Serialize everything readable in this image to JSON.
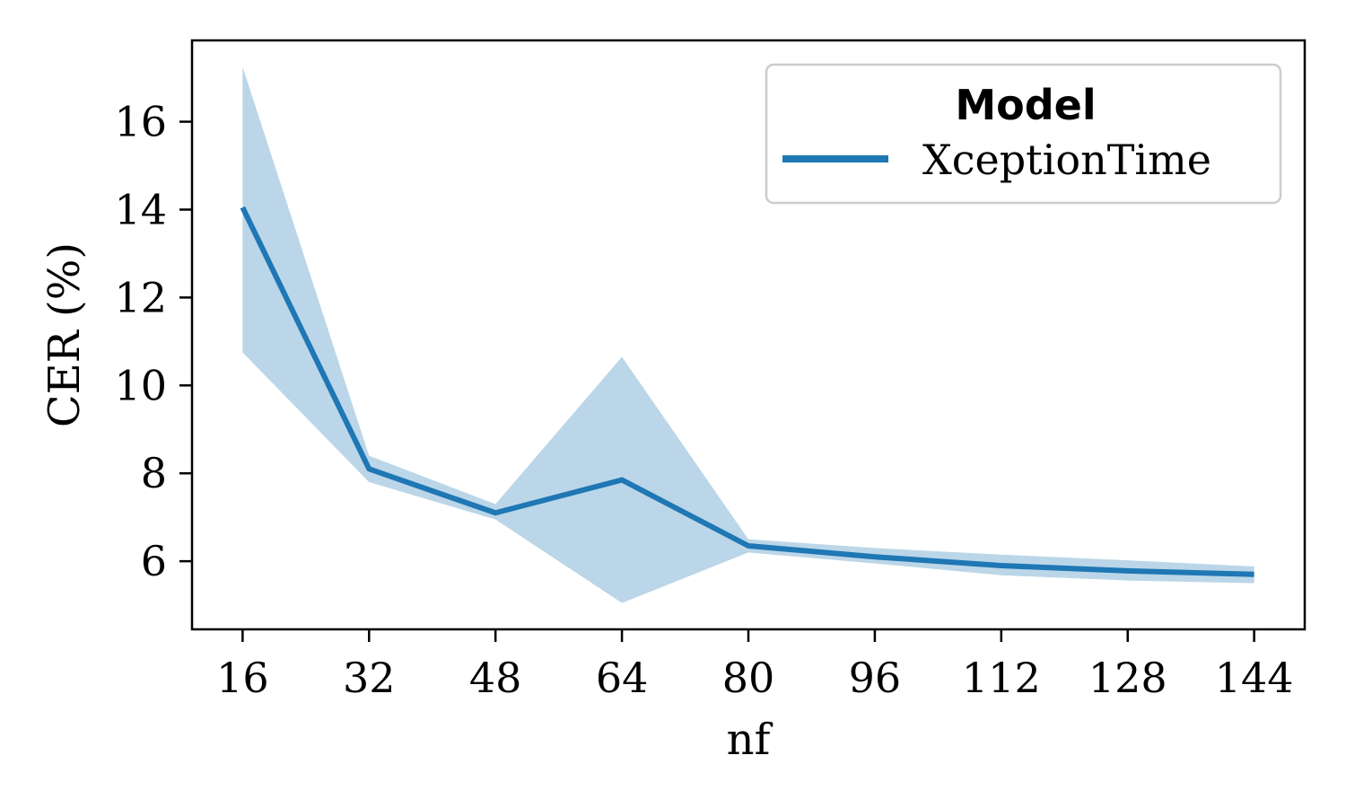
{
  "chart_data": {
    "type": "line",
    "xlabel": "nf",
    "ylabel": "CER (%)",
    "x": [
      16,
      32,
      48,
      64,
      80,
      96,
      112,
      128,
      144
    ],
    "xticks": [
      16,
      32,
      48,
      64,
      80,
      96,
      112,
      128,
      144
    ],
    "yticks": [
      6,
      8,
      10,
      12,
      14,
      16
    ],
    "xlim": [
      9.6,
      150.4
    ],
    "ylim": [
      4.45,
      17.85
    ],
    "grid": false,
    "legend": {
      "title": "Model",
      "placement": "top-right"
    },
    "series": [
      {
        "name": "XceptionTime",
        "color": "#1f77b4",
        "values": [
          14.05,
          8.1,
          7.1,
          7.85,
          6.35,
          6.1,
          5.9,
          5.78,
          5.7
        ],
        "upper": [
          17.25,
          8.4,
          7.3,
          10.65,
          6.5,
          6.3,
          6.15,
          6.02,
          5.88
        ],
        "lower": [
          10.75,
          7.8,
          6.95,
          5.05,
          6.2,
          5.95,
          5.68,
          5.56,
          5.5
        ]
      }
    ]
  }
}
